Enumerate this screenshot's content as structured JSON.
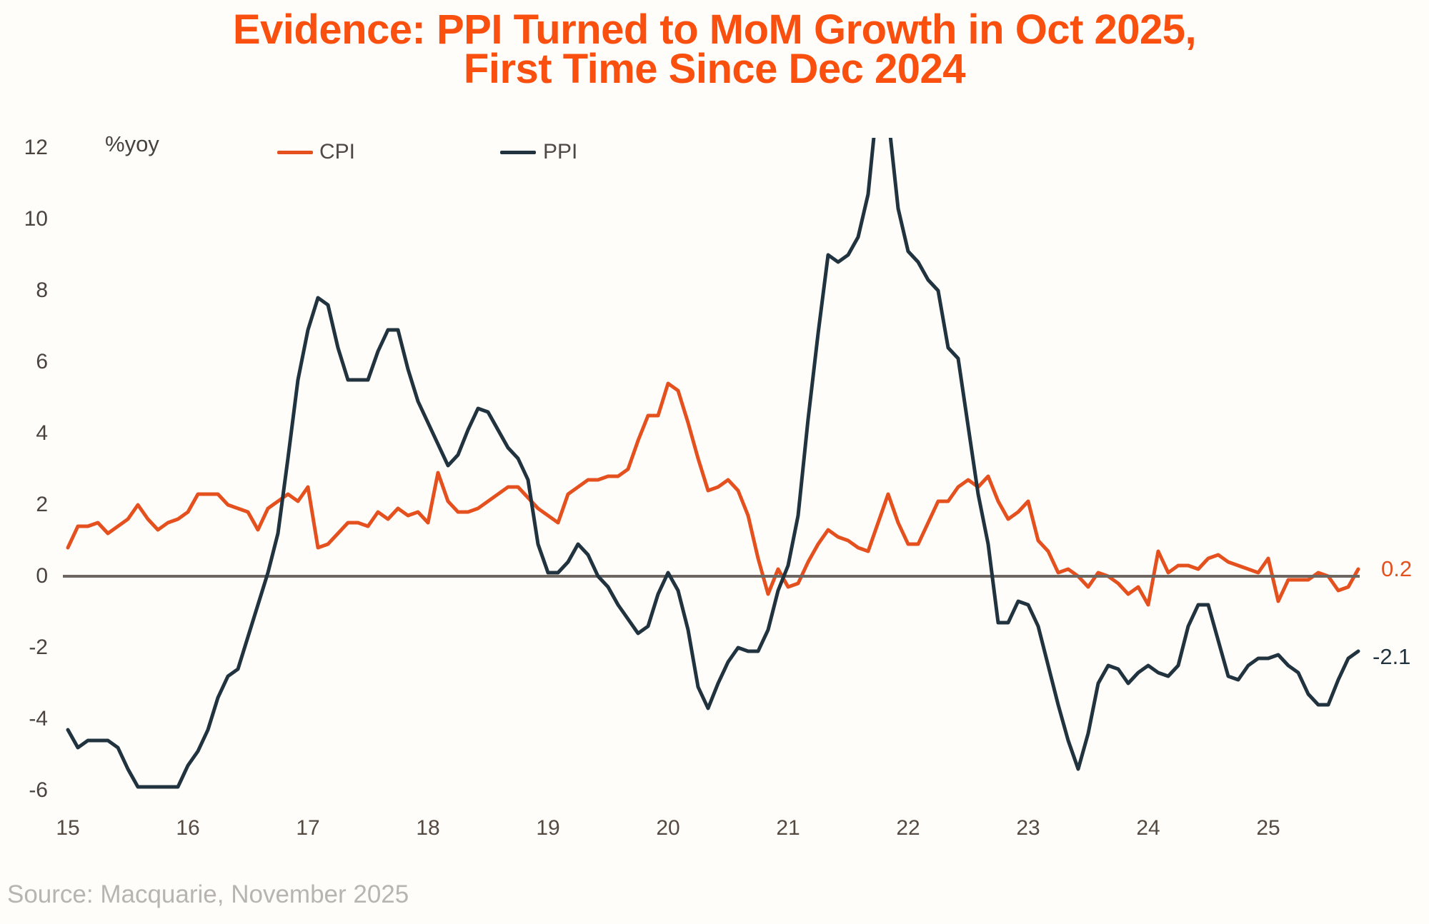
{
  "title": {
    "line1": "Evidence: PPI Turned to MoM Growth in Oct 2025,",
    "line2": "First Time Since Dec 2024"
  },
  "unit_label": "%yoy",
  "legend": {
    "cpi_label": "CPI",
    "ppi_label": "PPI"
  },
  "end_labels": {
    "cpi": "0.2",
    "ppi": "-2.1"
  },
  "source": "Source: Macquarie, November 2025",
  "colors": {
    "title_orange": "#f95010",
    "cpi_line": "#e5501f",
    "ppi_line": "#20333e",
    "zero_line": "#6e6660",
    "axis_text": "#4a433e",
    "source_text": "#b7b4b1"
  },
  "chart_data": {
    "type": "line",
    "title": "Evidence: PPI Turned to MoM Growth in Oct 2025, First Time Since Dec 2024",
    "ylabel": "%yoy",
    "x_start": "2015-01",
    "x_end": "2025-10",
    "x_frequency": "monthly",
    "x_tick_labels": [
      "15",
      "16",
      "17",
      "18",
      "19",
      "20",
      "21",
      "22",
      "23",
      "24",
      "25"
    ],
    "y_ticks": [
      12,
      10,
      8,
      6,
      4,
      2,
      0,
      "-2",
      "-4",
      "-6"
    ],
    "ylim": [
      -6.6,
      12.3
    ],
    "grid": false,
    "legend_position": "top",
    "series": [
      {
        "name": "CPI",
        "color": "#e5501f",
        "values": [
          0.8,
          1.4,
          1.4,
          1.5,
          1.2,
          1.4,
          1.6,
          2.0,
          1.6,
          1.3,
          1.5,
          1.6,
          1.8,
          2.3,
          2.3,
          2.3,
          2.0,
          1.9,
          1.8,
          1.3,
          1.9,
          2.1,
          2.3,
          2.1,
          2.5,
          0.8,
          0.9,
          1.2,
          1.5,
          1.5,
          1.4,
          1.8,
          1.6,
          1.9,
          1.7,
          1.8,
          1.5,
          2.9,
          2.1,
          1.8,
          1.8,
          1.9,
          2.1,
          2.3,
          2.5,
          2.5,
          2.2,
          1.9,
          1.7,
          1.5,
          2.3,
          2.5,
          2.7,
          2.7,
          2.8,
          2.8,
          3.0,
          3.8,
          4.5,
          4.5,
          5.4,
          5.2,
          4.3,
          3.3,
          2.4,
          2.5,
          2.7,
          2.4,
          1.7,
          0.5,
          -0.5,
          0.2,
          -0.3,
          -0.2,
          0.4,
          0.9,
          1.3,
          1.1,
          1.0,
          0.8,
          0.7,
          1.5,
          2.3,
          1.5,
          0.9,
          0.9,
          1.5,
          2.1,
          2.1,
          2.5,
          2.7,
          2.5,
          2.8,
          2.1,
          1.6,
          1.8,
          2.1,
          1.0,
          0.7,
          0.1,
          0.2,
          0.0,
          -0.3,
          0.1,
          0.0,
          -0.2,
          -0.5,
          -0.3,
          -0.8,
          0.7,
          0.1,
          0.3,
          0.3,
          0.2,
          0.5,
          0.6,
          0.4,
          0.3,
          0.2,
          0.1,
          0.5,
          -0.7,
          -0.1,
          -0.1,
          -0.1,
          0.1,
          0.0,
          -0.4,
          -0.3,
          0.2
        ]
      },
      {
        "name": "PPI",
        "color": "#20333e",
        "values": [
          -4.3,
          -4.8,
          -4.6,
          -4.6,
          -4.6,
          -4.8,
          -5.4,
          -5.9,
          -5.9,
          -5.9,
          -5.9,
          -5.9,
          -5.3,
          -4.9,
          -4.3,
          -3.4,
          -2.8,
          -2.6,
          -1.7,
          -0.8,
          0.1,
          1.2,
          3.3,
          5.5,
          6.9,
          7.8,
          7.6,
          6.4,
          5.5,
          5.5,
          5.5,
          6.3,
          6.9,
          6.9,
          5.8,
          4.9,
          4.3,
          3.7,
          3.1,
          3.4,
          4.1,
          4.7,
          4.6,
          4.1,
          3.6,
          3.3,
          2.7,
          0.9,
          0.1,
          0.1,
          0.4,
          0.9,
          0.6,
          0.0,
          -0.3,
          -0.8,
          -1.2,
          -1.6,
          -1.4,
          -0.5,
          0.1,
          -0.4,
          -1.5,
          -3.1,
          -3.7,
          -3.0,
          -2.4,
          -2.0,
          -2.1,
          -2.1,
          -1.5,
          -0.4,
          0.3,
          1.7,
          4.4,
          6.8,
          9.0,
          8.8,
          9.0,
          9.5,
          10.7,
          13.5,
          12.9,
          10.3,
          9.1,
          8.8,
          8.3,
          8.0,
          6.4,
          6.1,
          4.2,
          2.3,
          0.9,
          -1.3,
          -1.3,
          -0.7,
          -0.8,
          -1.4,
          -2.5,
          -3.6,
          -4.6,
          -5.4,
          -4.4,
          -3.0,
          -2.5,
          -2.6,
          -3.0,
          -2.7,
          -2.5,
          -2.7,
          -2.8,
          -2.5,
          -1.4,
          -0.8,
          -0.8,
          -1.8,
          -2.8,
          -2.9,
          -2.5,
          -2.3,
          -2.3,
          -2.2,
          -2.5,
          -2.7,
          -3.3,
          -3.6,
          -3.6,
          -2.9,
          -2.3,
          -2.1
        ]
      }
    ]
  }
}
